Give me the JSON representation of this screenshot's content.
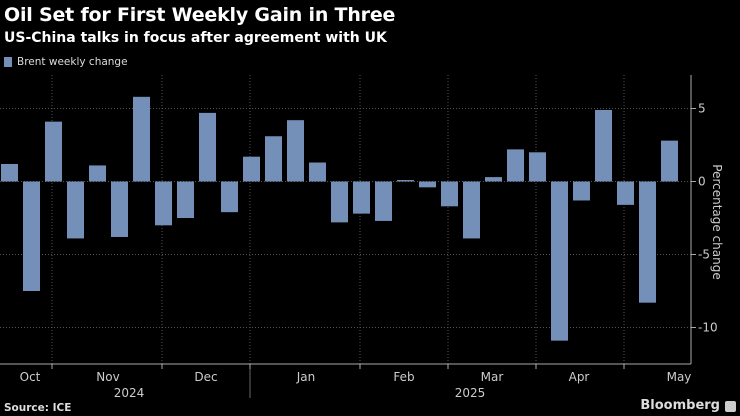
{
  "title": "Oil Set for First Weekly Gain in Three",
  "subtitle": "US-China talks in focus after agreement with UK",
  "source": "Source: ICE",
  "brand": "Bloomberg",
  "chart_data": {
    "type": "bar",
    "series": [
      {
        "name": "Brent weekly change",
        "color": "#7590b8",
        "values": [
          1.2,
          -7.5,
          4.1,
          -3.9,
          1.1,
          -3.8,
          5.8,
          -3.0,
          -2.5,
          4.7,
          -2.1,
          1.7,
          3.1,
          4.2,
          1.3,
          -2.8,
          -2.2,
          -2.7,
          0.1,
          -0.4,
          -1.7,
          -3.9,
          0.3,
          2.2,
          2.0,
          -10.9,
          -1.3,
          4.9,
          -1.6,
          -8.3,
          2.8
        ]
      }
    ],
    "xlabels": [
      {
        "label": "Oct"
      },
      {
        "label": "Nov"
      },
      {
        "label": "Dec"
      },
      {
        "label": "Jan"
      },
      {
        "label": "Feb"
      },
      {
        "label": "Mar"
      },
      {
        "label": "Apr"
      },
      {
        "label": "May"
      }
    ],
    "years": [
      "2024",
      "2025"
    ],
    "ylabel": "Percentage change",
    "yticks": [
      5,
      0,
      -5,
      -10
    ],
    "ylim": [
      -12.5,
      7.3
    ],
    "grid": true,
    "legend": "top-left",
    "background": "#000000"
  }
}
